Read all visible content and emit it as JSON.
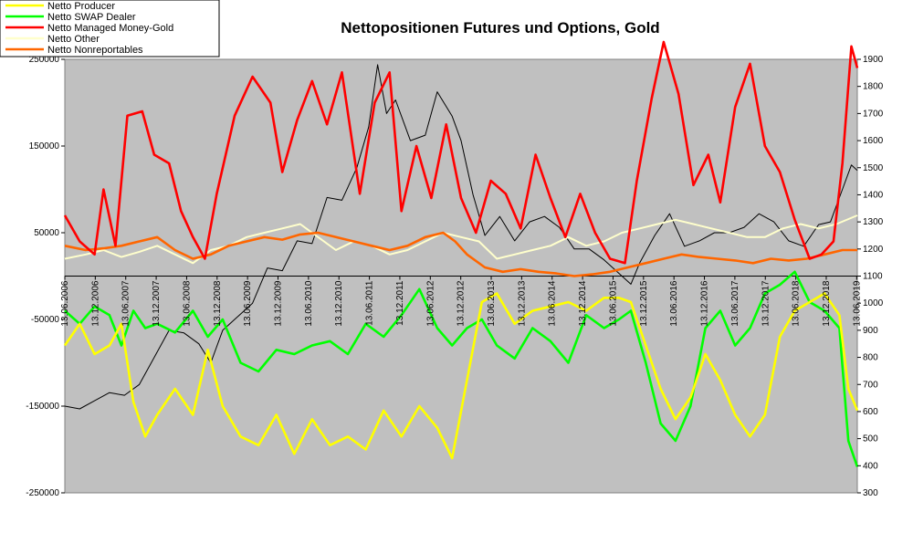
{
  "chart_data": {
    "type": "line",
    "title": "Nettopositionen Futures und Options, Gold",
    "xlabel": "",
    "ylabel": "",
    "y_left": {
      "min": -250000,
      "max": 250000,
      "ticks": [
        -250000,
        -150000,
        -50000,
        50000,
        150000,
        250000
      ]
    },
    "y_right": {
      "min": 300,
      "max": 1900,
      "ticks": [
        300,
        400,
        500,
        600,
        700,
        800,
        900,
        1000,
        1100,
        1200,
        1300,
        1400,
        1500,
        1600,
        1700,
        1800,
        1900
      ]
    },
    "x_range": [
      2006.45,
      2019.75
    ],
    "x_tick_labels": [
      "13.06.2006",
      "13.12.2006",
      "13.06.2007",
      "13.12.2007",
      "13.06.2008",
      "13.12.2008",
      "13.06.2009",
      "13.12.2009",
      "13.06.2010",
      "13.12.2010",
      "13.06.2011",
      "13.12.2011",
      "13.06.2012",
      "13.12.2012",
      "13.06.2013",
      "13.12.2013",
      "13.06.2014",
      "13.12.2014",
      "13.06.2015",
      "13.12.2015",
      "13.06.2016",
      "13.12.2016",
      "13.06.2017",
      "13.12.2017",
      "13.06.2018",
      "13.12.2018",
      "13.06.2019"
    ],
    "plot_background": "#c0c0c0",
    "grid": false,
    "legend_position": "top-left",
    "series": [
      {
        "name": "Netto Producer",
        "color": "#ffff00",
        "axis": "left",
        "x": [
          2006.45,
          2006.7,
          2006.95,
          2007.2,
          2007.4,
          2007.6,
          2007.8,
          2008.0,
          2008.3,
          2008.6,
          2008.85,
          2009.1,
          2009.4,
          2009.7,
          2010.0,
          2010.3,
          2010.6,
          2010.9,
          2011.2,
          2011.5,
          2011.8,
          2012.1,
          2012.4,
          2012.7,
          2012.95,
          2013.2,
          2013.45,
          2013.7,
          2014.0,
          2014.3,
          2014.6,
          2014.9,
          2015.2,
          2015.5,
          2015.75,
          2015.95,
          2016.2,
          2016.45,
          2016.7,
          2016.95,
          2017.2,
          2017.45,
          2017.7,
          2017.95,
          2018.2,
          2018.45,
          2018.7,
          2018.95,
          2019.2,
          2019.45,
          2019.6,
          2019.75
        ],
        "y": [
          -80000,
          -55000,
          -90000,
          -80000,
          -55000,
          -145000,
          -185000,
          -160000,
          -130000,
          -160000,
          -85000,
          -150000,
          -185000,
          -195000,
          -160000,
          -205000,
          -165000,
          -195000,
          -185000,
          -200000,
          -155000,
          -185000,
          -150000,
          -175000,
          -210000,
          -120000,
          -30000,
          -20000,
          -55000,
          -40000,
          -35000,
          -30000,
          -40000,
          -25000,
          -25000,
          -30000,
          -80000,
          -130000,
          -165000,
          -140000,
          -90000,
          -120000,
          -160000,
          -185000,
          -160000,
          -70000,
          -40000,
          -30000,
          -20000,
          -45000,
          -130000,
          -155000
        ]
      },
      {
        "name": "Netto SWAP Dealer",
        "color": "#00ff00",
        "axis": "left",
        "x": [
          2006.45,
          2006.7,
          2006.95,
          2007.2,
          2007.4,
          2007.6,
          2007.8,
          2008.0,
          2008.3,
          2008.6,
          2008.85,
          2009.1,
          2009.4,
          2009.7,
          2010.0,
          2010.3,
          2010.6,
          2010.9,
          2011.2,
          2011.5,
          2011.8,
          2012.1,
          2012.4,
          2012.7,
          2012.95,
          2013.2,
          2013.45,
          2013.7,
          2014.0,
          2014.3,
          2014.6,
          2014.9,
          2015.2,
          2015.5,
          2015.75,
          2015.95,
          2016.2,
          2016.45,
          2016.7,
          2016.95,
          2017.2,
          2017.45,
          2017.7,
          2017.95,
          2018.2,
          2018.45,
          2018.7,
          2018.95,
          2019.2,
          2019.45,
          2019.6,
          2019.75
        ],
        "y": [
          -40000,
          -55000,
          -35000,
          -45000,
          -80000,
          -40000,
          -60000,
          -55000,
          -65000,
          -40000,
          -70000,
          -50000,
          -100000,
          -110000,
          -85000,
          -90000,
          -80000,
          -75000,
          -90000,
          -55000,
          -70000,
          -45000,
          -15000,
          -60000,
          -80000,
          -60000,
          -50000,
          -80000,
          -95000,
          -60000,
          -75000,
          -100000,
          -45000,
          -60000,
          -50000,
          -40000,
          -100000,
          -170000,
          -190000,
          -150000,
          -60000,
          -40000,
          -80000,
          -60000,
          -20000,
          -10000,
          5000,
          -30000,
          -40000,
          -60000,
          -190000,
          -220000
        ]
      },
      {
        "name": "Netto Managed Money-Gold",
        "color": "#ff0000",
        "axis": "left",
        "x": [
          2006.45,
          2006.7,
          2006.95,
          2007.1,
          2007.3,
          2007.5,
          2007.75,
          2007.95,
          2008.2,
          2008.4,
          2008.6,
          2008.8,
          2009.0,
          2009.3,
          2009.6,
          2009.9,
          2010.1,
          2010.35,
          2010.6,
          2010.85,
          2011.1,
          2011.4,
          2011.65,
          2011.9,
          2012.1,
          2012.35,
          2012.6,
          2012.85,
          2013.1,
          2013.35,
          2013.6,
          2013.85,
          2014.1,
          2014.35,
          2014.6,
          2014.85,
          2015.1,
          2015.35,
          2015.6,
          2015.85,
          2016.05,
          2016.3,
          2016.5,
          2016.75,
          2017.0,
          2017.25,
          2017.45,
          2017.7,
          2017.95,
          2018.2,
          2018.45,
          2018.7,
          2018.95,
          2019.15,
          2019.35,
          2019.5,
          2019.65,
          2019.75
        ],
        "y": [
          70000,
          40000,
          25000,
          100000,
          35000,
          185000,
          190000,
          140000,
          130000,
          75000,
          45000,
          20000,
          95000,
          185000,
          230000,
          200000,
          120000,
          180000,
          225000,
          175000,
          235000,
          95000,
          200000,
          235000,
          75000,
          150000,
          90000,
          175000,
          90000,
          50000,
          110000,
          95000,
          55000,
          140000,
          90000,
          45000,
          95000,
          50000,
          20000,
          15000,
          110000,
          205000,
          270000,
          210000,
          105000,
          140000,
          85000,
          195000,
          245000,
          150000,
          120000,
          65000,
          20000,
          25000,
          40000,
          130000,
          265000,
          240000
        ]
      },
      {
        "name": "Netto Other",
        "color": "#ffffcc",
        "axis": "left",
        "x": [
          2006.45,
          2006.8,
          2007.1,
          2007.4,
          2007.7,
          2008.0,
          2008.3,
          2008.6,
          2008.9,
          2009.2,
          2009.5,
          2009.8,
          2010.1,
          2010.4,
          2010.7,
          2011.0,
          2011.3,
          2011.6,
          2011.9,
          2012.2,
          2012.5,
          2012.8,
          2013.1,
          2013.4,
          2013.7,
          2014.0,
          2014.3,
          2014.6,
          2014.9,
          2015.2,
          2015.5,
          2015.8,
          2016.1,
          2016.4,
          2016.7,
          2017.0,
          2017.3,
          2017.6,
          2017.9,
          2018.2,
          2018.5,
          2018.8,
          2019.1,
          2019.4,
          2019.75
        ],
        "y": [
          20000,
          25000,
          30000,
          22000,
          28000,
          35000,
          25000,
          15000,
          30000,
          35000,
          45000,
          50000,
          55000,
          60000,
          45000,
          30000,
          40000,
          35000,
          25000,
          30000,
          40000,
          50000,
          45000,
          40000,
          20000,
          25000,
          30000,
          35000,
          45000,
          35000,
          40000,
          50000,
          55000,
          60000,
          65000,
          60000,
          55000,
          50000,
          45000,
          45000,
          55000,
          60000,
          55000,
          60000,
          70000
        ]
      },
      {
        "name": "Netto Nonreportables",
        "color": "#ff6600",
        "axis": "left",
        "x": [
          2006.45,
          2006.8,
          2007.1,
          2007.4,
          2007.7,
          2008.0,
          2008.3,
          2008.6,
          2008.9,
          2009.2,
          2009.5,
          2009.8,
          2010.1,
          2010.4,
          2010.7,
          2011.0,
          2011.3,
          2011.6,
          2011.9,
          2012.2,
          2012.5,
          2012.8,
          2013.0,
          2013.2,
          2013.5,
          2013.8,
          2014.1,
          2014.4,
          2014.7,
          2015.0,
          2015.3,
          2015.6,
          2015.9,
          2016.2,
          2016.5,
          2016.8,
          2017.1,
          2017.4,
          2017.7,
          2018.0,
          2018.3,
          2018.6,
          2018.9,
          2019.2,
          2019.5,
          2019.75
        ],
        "y": [
          35000,
          30000,
          32000,
          35000,
          40000,
          45000,
          30000,
          20000,
          25000,
          35000,
          40000,
          45000,
          42000,
          48000,
          50000,
          45000,
          40000,
          35000,
          30000,
          35000,
          45000,
          50000,
          40000,
          25000,
          10000,
          5000,
          8000,
          5000,
          3000,
          0,
          2000,
          5000,
          10000,
          15000,
          20000,
          25000,
          22000,
          20000,
          18000,
          15000,
          20000,
          18000,
          20000,
          25000,
          30000,
          30000
        ]
      },
      {
        "name": "",
        "color": "#000000",
        "axis": "right",
        "x": [
          2006.45,
          2006.7,
          2006.95,
          2007.2,
          2007.45,
          2007.7,
          2007.95,
          2008.2,
          2008.45,
          2008.7,
          2008.9,
          2009.1,
          2009.35,
          2009.6,
          2009.85,
          2010.1,
          2010.35,
          2010.6,
          2010.85,
          2011.1,
          2011.35,
          2011.55,
          2011.7,
          2011.85,
          2012.0,
          2012.25,
          2012.5,
          2012.7,
          2012.95,
          2013.1,
          2013.3,
          2013.5,
          2013.75,
          2014.0,
          2014.25,
          2014.5,
          2014.75,
          2015.0,
          2015.25,
          2015.5,
          2015.75,
          2015.95,
          2016.1,
          2016.35,
          2016.6,
          2016.85,
          2017.1,
          2017.35,
          2017.6,
          2017.85,
          2018.1,
          2018.35,
          2018.6,
          2018.85,
          2019.1,
          2019.3,
          2019.5,
          2019.65,
          2019.75
        ],
        "y": [
          620,
          610,
          640,
          670,
          660,
          700,
          800,
          900,
          890,
          850,
          780,
          900,
          950,
          1000,
          1130,
          1120,
          1230,
          1220,
          1390,
          1380,
          1500,
          1650,
          1880,
          1700,
          1750,
          1600,
          1620,
          1780,
          1690,
          1600,
          1400,
          1250,
          1320,
          1230,
          1300,
          1320,
          1280,
          1200,
          1200,
          1160,
          1110,
          1070,
          1150,
          1250,
          1330,
          1210,
          1230,
          1260,
          1260,
          1280,
          1330,
          1300,
          1230,
          1210,
          1290,
          1300,
          1420,
          1510,
          1490
        ]
      }
    ]
  }
}
